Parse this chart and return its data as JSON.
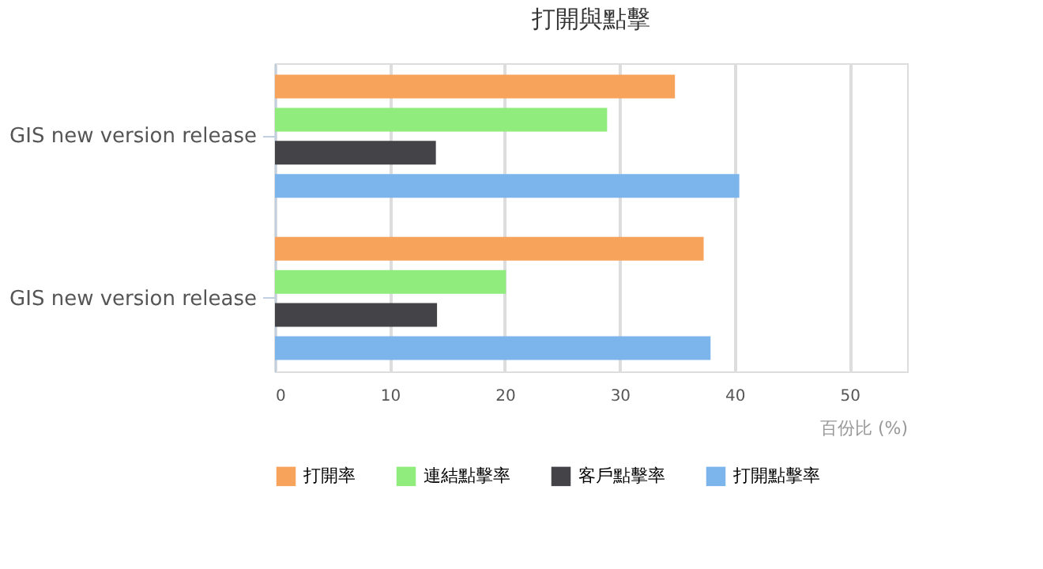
{
  "chart_data": {
    "type": "bar",
    "orientation": "horizontal",
    "title": "打開與點擊",
    "xlabel": "百份比 (%)",
    "categories": [
      "GIS new version release",
      "GIS new version release"
    ],
    "series": [
      {
        "name": "打開率",
        "color": "#f7a35c",
        "values": [
          34.8,
          37.3
        ]
      },
      {
        "name": "連結點擊率",
        "color": "#90ed7d",
        "values": [
          28.9,
          20.1
        ]
      },
      {
        "name": "客戶點擊率",
        "color": "#434348",
        "values": [
          14.0,
          14.1
        ]
      },
      {
        "name": "打開點擊率",
        "color": "#7cb5ec",
        "values": [
          40.4,
          37.9
        ]
      }
    ],
    "xlim": [
      0,
      55
    ],
    "xticks": [
      0,
      10,
      20,
      30,
      40,
      50
    ],
    "grid": "x",
    "legend": "bottom"
  }
}
